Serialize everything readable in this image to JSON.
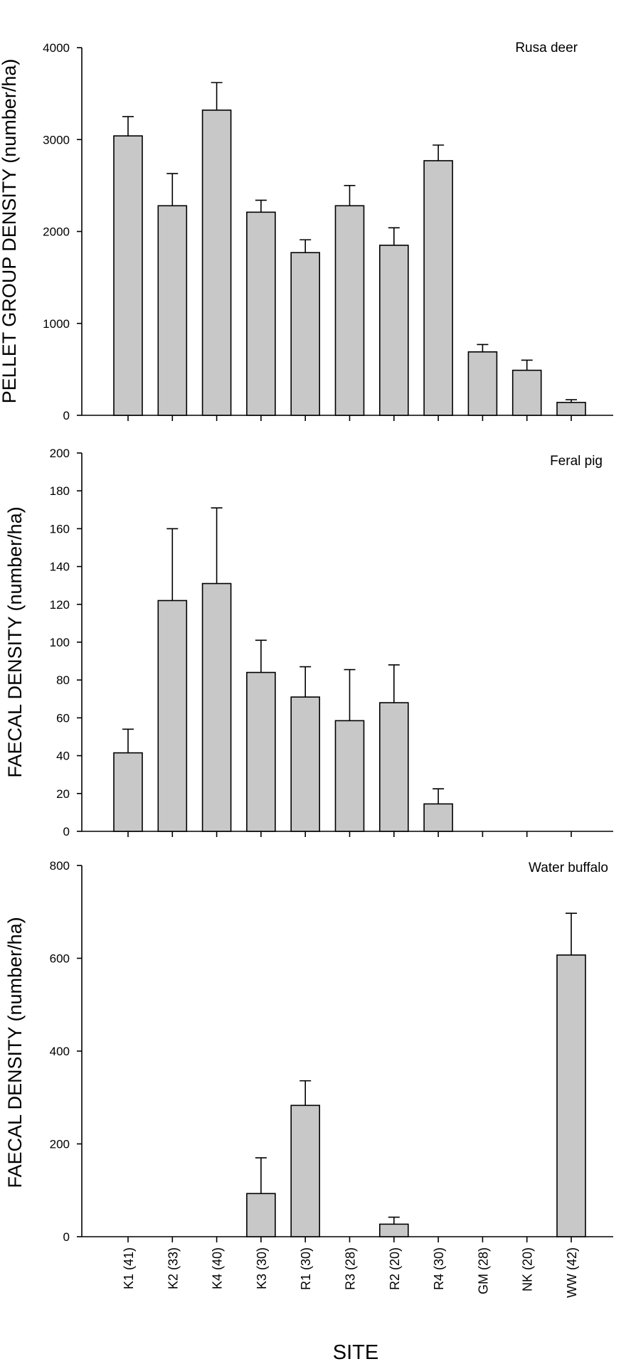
{
  "chart_data": [
    {
      "type": "bar",
      "title": "Rusa deer",
      "ylabel": "PELLET GROUP DENSITY (number/ha)",
      "xlabel": "",
      "categories": [
        "K1 (41)",
        "K2 (33)",
        "K4 (40)",
        "K3 (30)",
        "R1 (30)",
        "R3 (28)",
        "R2 (20)",
        "R4 (30)",
        "GM (28)",
        "NK (20)",
        "WW (42)"
      ],
      "values": [
        3040,
        2280,
        3320,
        2210,
        1770,
        2280,
        1850,
        2770,
        690,
        490,
        140
      ],
      "errors": [
        210,
        350,
        300,
        130,
        140,
        220,
        190,
        170,
        80,
        110,
        30
      ],
      "yticks": [
        0,
        1000,
        2000,
        3000,
        4000
      ],
      "ylim": [
        0,
        4000
      ],
      "grid": false
    },
    {
      "type": "bar",
      "title": "Feral pig",
      "ylabel": "FAECAL DENSITY (number/ha)",
      "xlabel": "",
      "categories": [
        "K1 (41)",
        "K2 (33)",
        "K4 (40)",
        "K3 (30)",
        "R1 (30)",
        "R3 (28)",
        "R2 (20)",
        "R4 (30)",
        "GM (28)",
        "NK (20)",
        "WW (42)"
      ],
      "values": [
        41.5,
        122,
        131,
        84,
        71,
        58.5,
        68,
        14.5,
        0,
        0,
        0
      ],
      "errors": [
        12.5,
        38,
        40,
        17,
        16,
        27,
        20,
        8,
        0,
        0,
        0
      ],
      "yticks": [
        0,
        20,
        40,
        60,
        80,
        100,
        120,
        140,
        160,
        180,
        200
      ],
      "ylim": [
        0,
        200
      ],
      "grid": false
    },
    {
      "type": "bar",
      "title": "Water buffalo",
      "ylabel": "FAECAL DENSITY (number/ha)",
      "xlabel": "SITE",
      "categories": [
        "K1 (41)",
        "K2 (33)",
        "K4 (40)",
        "K3 (30)",
        "R1 (30)",
        "R3 (28)",
        "R2 (20)",
        "R4 (30)",
        "GM (28)",
        "NK (20)",
        "WW (42)"
      ],
      "values": [
        0,
        0,
        0,
        93,
        283,
        0,
        27,
        0,
        0,
        0,
        607
      ],
      "errors": [
        0,
        0,
        0,
        77,
        53,
        0,
        15,
        0,
        0,
        0,
        90
      ],
      "yticks": [
        0,
        200,
        400,
        600,
        800
      ],
      "ylim": [
        0,
        800
      ],
      "grid": false
    }
  ]
}
